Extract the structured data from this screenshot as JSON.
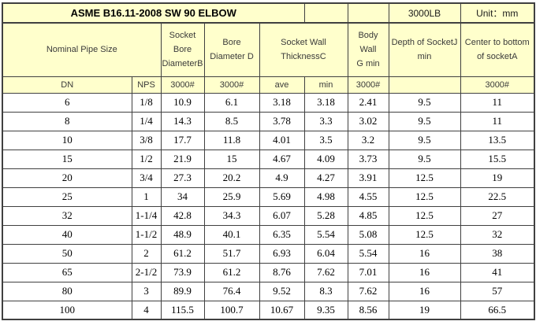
{
  "colors": {
    "header_bg": "#ffffcc",
    "data_row_bg": "#ffffff",
    "border": "#404040",
    "title_text": "#000000",
    "header_text": "#3a3a3a",
    "data_text": "#000000"
  },
  "table": {
    "title": "ASME B16.11-2008 SW 90 ELBOW",
    "pressure_class": "3000LB",
    "unit": "Unit：mm",
    "column_headers": {
      "nominal_pipe_size": "Nominal Pipe Size",
      "socket_bore": "Socket\nBore\nDiameterB",
      "bore_diameter": "Bore\nDiameter D",
      "socket_wall": "Socket Wall\nThicknessC",
      "body_wall": "Body Wall\nG min",
      "depth_of_socket": "Depth of SocketJ\nmin",
      "center_to_bottom": "Center to bottom\nof socketA"
    },
    "subheaders": [
      "DN",
      "NPS",
      "3000#",
      "3000#",
      "ave",
      "min",
      "3000#",
      "",
      "3000#"
    ],
    "rows": [
      [
        "6",
        "1/8",
        "10.9",
        "6.1",
        "3.18",
        "3.18",
        "2.41",
        "9.5",
        "11"
      ],
      [
        "8",
        "1/4",
        "14.3",
        "8.5",
        "3.78",
        "3.3",
        "3.02",
        "9.5",
        "11"
      ],
      [
        "10",
        "3/8",
        "17.7",
        "11.8",
        "4.01",
        "3.5",
        "3.2",
        "9.5",
        "13.5"
      ],
      [
        "15",
        "1/2",
        "21.9",
        "15",
        "4.67",
        "4.09",
        "3.73",
        "9.5",
        "15.5"
      ],
      [
        "20",
        "3/4",
        "27.3",
        "20.2",
        "4.9",
        "4.27",
        "3.91",
        "12.5",
        "19"
      ],
      [
        "25",
        "1",
        "34",
        "25.9",
        "5.69",
        "4.98",
        "4.55",
        "12.5",
        "22.5"
      ],
      [
        "32",
        "1-1/4",
        "42.8",
        "34.3",
        "6.07",
        "5.28",
        "4.85",
        "12.5",
        "27"
      ],
      [
        "40",
        "1-1/2",
        "48.9",
        "40.1",
        "6.35",
        "5.54",
        "5.08",
        "12.5",
        "32"
      ],
      [
        "50",
        "2",
        "61.2",
        "51.7",
        "6.93",
        "6.04",
        "5.54",
        "16",
        "38"
      ],
      [
        "65",
        "2-1/2",
        "73.9",
        "61.2",
        "8.76",
        "7.62",
        "7.01",
        "16",
        "41"
      ],
      [
        "80",
        "3",
        "89.9",
        "76.4",
        "9.52",
        "8.3",
        "7.62",
        "16",
        "57"
      ],
      [
        "100",
        "4",
        "115.5",
        "100.7",
        "10.67",
        "9.35",
        "8.56",
        "19",
        "66.5"
      ]
    ]
  }
}
